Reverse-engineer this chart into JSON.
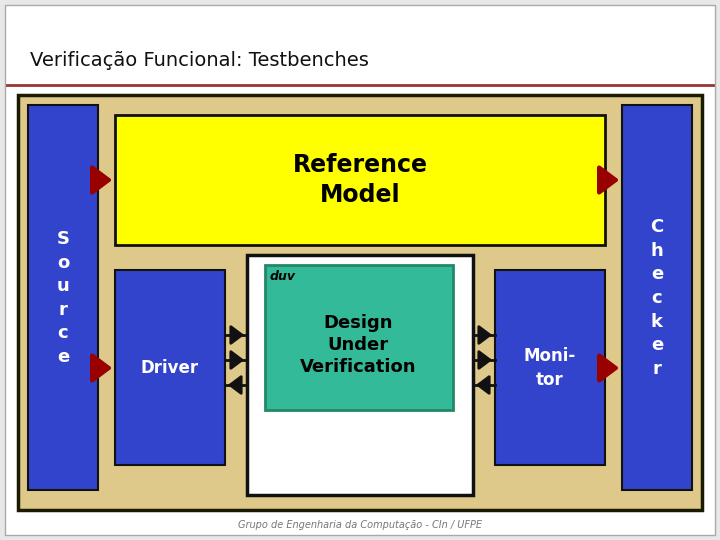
{
  "title": "Verificação Funcional: Testbenches",
  "title_fontsize": 14,
  "title_color": "#111111",
  "bg_outer": "#e8e8e8",
  "bg_slide": "#ffffff",
  "slide_border": "#aaaaaa",
  "tan_bg": "#dfc98a",
  "tan_border": "#1a1a00",
  "blue_box": "#3344cc",
  "blue_box_border": "#111111",
  "yellow_box": "#ffff00",
  "yellow_box_border": "#111111",
  "teal_box": "#33bb99",
  "teal_box_border": "#228866",
  "white_box": "#ffffff",
  "white_box_border": "#111111",
  "dark_red_arrow": "#990000",
  "black_arrow": "#111111",
  "source_text": "S\no\nu\nr\nc\ne",
  "checker_text": "C\nh\ne\nc\nk\ne\nr",
  "driver_text": "Driver",
  "monitor_text": "Moni-\ntor",
  "ref_model_text": "Reference\nModel",
  "duv_label": "duv",
  "duv_text": "Design\nUnder\nVerification",
  "footer_text": "Grupo de Engenharia da Computação - CIn / UFPE",
  "footer_color": "#777777",
  "footer_fontsize": 7
}
